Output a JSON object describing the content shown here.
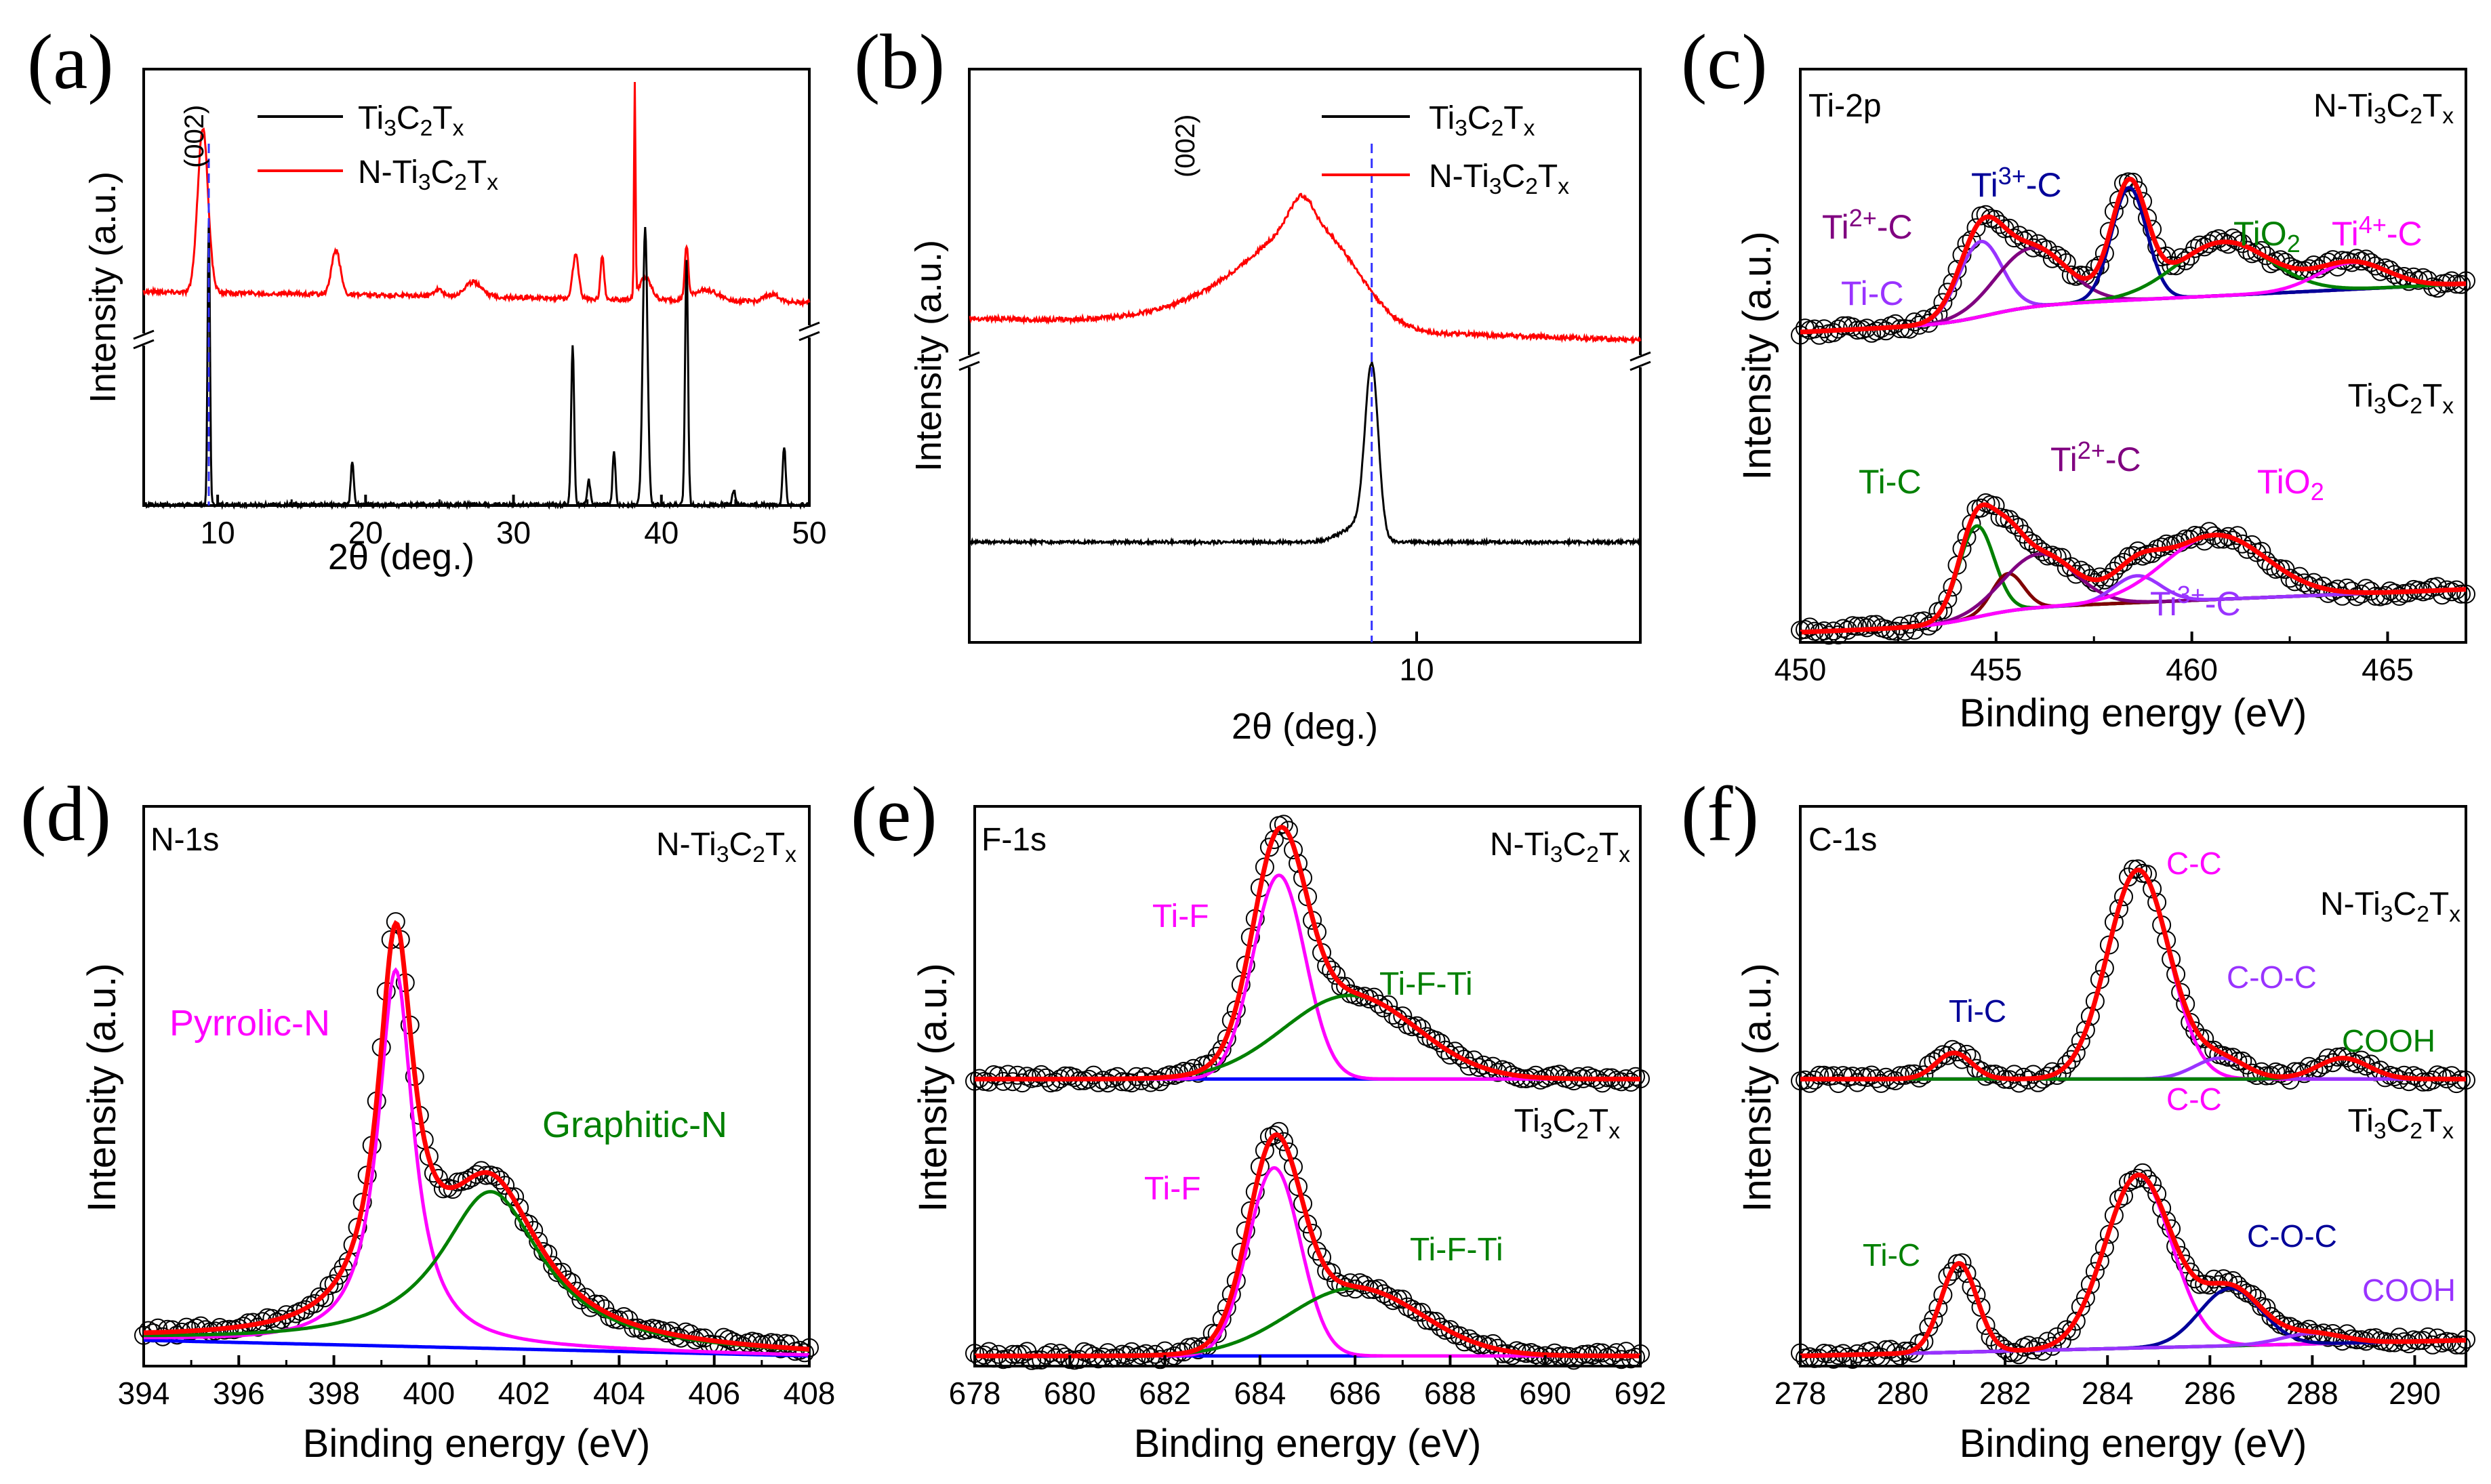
{
  "figure": {
    "colors": {
      "black": "#000000",
      "red": "#ff0000",
      "blue": "#0000ff",
      "navy": "#000099",
      "magenta": "#ff00ff",
      "green": "#008000",
      "purple": "#800080",
      "violet": "#9933ff",
      "darkred": "#800000",
      "dash": "#3333ff"
    }
  },
  "chart_data": [
    {
      "id": "a",
      "panel_label": "(a)",
      "type": "line",
      "xlabel": "2θ (deg.)",
      "ylabel": "Intensity (a.u.)",
      "xlim": [
        5,
        50
      ],
      "xticks": [
        10,
        20,
        30,
        40,
        50
      ],
      "y_axis_break": true,
      "legend": [
        {
          "name": "Ti3C2Tx",
          "main": "Ti",
          "parts": [
            [
              "3",
              "C"
            ],
            [
              "2",
              "T"
            ],
            [
              "x",
              ""
            ]
          ],
          "color": "#000000"
        },
        {
          "name": "N-Ti3C2Tx",
          "main": "N-Ti",
          "parts": [
            [
              "3",
              "C"
            ],
            [
              "2",
              "T"
            ],
            [
              "x",
              ""
            ]
          ],
          "color": "#ff0000"
        }
      ],
      "annotations": [
        "(002)"
      ],
      "reference_line_x": 9.4,
      "series": [
        {
          "name": "N-Ti3C2Tx",
          "color": "#ff0000",
          "baseline": 0.4,
          "slope": -0.03,
          "noise": 0.006,
          "peaks": [
            [
              9.0,
              0.45,
              0.35
            ],
            [
              18.0,
              0.12,
              0.3
            ],
            [
              27.3,
              0.04,
              0.6
            ],
            [
              34.2,
              0.12,
              0.2
            ],
            [
              36.0,
              0.12,
              0.12
            ],
            [
              38.2,
              0.58,
              0.05
            ],
            [
              38.9,
              0.06,
              0.4
            ],
            [
              41.7,
              0.14,
              0.12
            ],
            [
              43.0,
              0.03,
              0.8
            ],
            [
              24.9,
              0.02,
              0.3
            ],
            [
              47.5,
              0.02,
              0.5
            ]
          ]
        },
        {
          "name": "Ti3C2Tx",
          "color": "#000000",
          "baseline": 0.0,
          "slope": 0.0,
          "noise": 0.004,
          "peaks": [
            [
              9.4,
              0.58,
              0.08
            ],
            [
              19.1,
              0.09,
              0.1
            ],
            [
              34.0,
              0.33,
              0.1
            ],
            [
              35.1,
              0.05,
              0.1
            ],
            [
              36.8,
              0.11,
              0.1
            ],
            [
              38.9,
              0.57,
              0.16
            ],
            [
              41.7,
              0.5,
              0.1
            ],
            [
              44.9,
              0.03,
              0.1
            ],
            [
              48.3,
              0.12,
              0.1
            ]
          ]
        }
      ]
    },
    {
      "id": "b",
      "panel_label": "(b)",
      "type": "line",
      "xlabel": "2θ (deg.)",
      "ylabel": "Intensity (a.u.)",
      "xlim": [
        2.5,
        20
      ],
      "xscale": "log",
      "xticks": [
        10
      ],
      "y_axis_break": true,
      "legend": [
        {
          "name": "Ti3C2Tx",
          "main": "Ti",
          "parts": [
            [
              "3",
              "C"
            ],
            [
              "2",
              "T"
            ],
            [
              "x",
              ""
            ]
          ],
          "color": "#000000"
        },
        {
          "name": "N-Ti3C2Tx",
          "main": "N-Ti",
          "parts": [
            [
              "3",
              "C"
            ],
            [
              "2",
              "T"
            ],
            [
              "x",
              ""
            ]
          ],
          "color": "#ff0000"
        }
      ],
      "annotations": [
        "(002)"
      ],
      "reference_line_x": 8.7,
      "series": [
        {
          "name": "N-Ti3C2Tx",
          "color": "#ff0000",
          "baseline": 0.52,
          "slope": -0.06,
          "noise": 0.006,
          "peaks": [
            [
              7.2,
              0.28,
              1.1
            ],
            [
              7.0,
              0.08,
              0.25
            ],
            [
              5.5,
              0.05,
              1.0
            ]
          ]
        },
        {
          "name": "Ti3C2Tx",
          "color": "#000000",
          "baseline": 0.0,
          "slope": 0.0,
          "noise": 0.003,
          "peaks": [
            [
              8.7,
              0.33,
              0.18
            ],
            [
              8.3,
              0.03,
              0.4
            ]
          ]
        }
      ]
    },
    {
      "id": "c",
      "panel_label": "(c)",
      "type": "line",
      "xlabel": "Binding energy (eV)",
      "ylabel": "Intensity (a.u.)",
      "xlim": [
        450,
        467
      ],
      "xticks": [
        450,
        455,
        460,
        465
      ],
      "top_title": "Ti-2p",
      "sample_labels": [
        {
          "main": "N-Ti",
          "parts": [
            [
              "3",
              "C"
            ],
            [
              "2",
              "T"
            ],
            [
              "x",
              ""
            ]
          ]
        },
        {
          "main": "Ti",
          "parts": [
            [
              "3",
              "C"
            ],
            [
              "2",
              "T"
            ],
            [
              "x",
              ""
            ]
          ]
        }
      ],
      "component_labels": [
        {
          "text": "Ti",
          "sup": "2+",
          "tail": "-C",
          "color": "#800080"
        },
        {
          "text": "Ti",
          "sup": "3+",
          "tail": "-C",
          "color": "#000099"
        },
        {
          "text": "TiO",
          "sub": "2",
          "tail": "",
          "color": "#008000"
        },
        {
          "text": "Ti",
          "sup": "4+",
          "tail": "-C",
          "color": "#ff00ff"
        },
        {
          "text": "Ti-C",
          "color": "#9933ff"
        },
        {
          "text": "Ti-C",
          "color": "#008000"
        },
        {
          "text": "Ti",
          "sup": "2+",
          "tail": "-C",
          "color": "#800080"
        },
        {
          "text": "TiO",
          "sub": "2",
          "tail": "",
          "color": "#ff00ff"
        },
        {
          "text": "Ti",
          "sup": "3+",
          "tail": "-C",
          "color": "#9933ff"
        }
      ],
      "spectra": [
        {
          "name": "N-Ti3C2Tx",
          "offset": 0.56,
          "background": {
            "start": 0.0,
            "end": 0.06,
            "step_center": 454.8,
            "step_width": 0.6,
            "step_height": 0.03
          },
          "components": [
            {
              "name": "Ti-C",
              "center": 454.6,
              "height": 0.14,
              "width": 0.55,
              "color": "#9933ff"
            },
            {
              "name": "Ti2+-C",
              "center": 455.9,
              "height": 0.11,
              "width": 0.9,
              "color": "#800080"
            },
            {
              "name": "Ti3+-C",
              "center": 458.4,
              "height": 0.21,
              "width": 0.45,
              "color": "#000099"
            },
            {
              "name": "TiO2",
              "center": 460.8,
              "height": 0.1,
              "width": 1.2,
              "color": "#008000"
            },
            {
              "name": "Ti4+-C",
              "center": 464.1,
              "height": 0.05,
              "width": 0.9,
              "color": "#ff00ff"
            }
          ],
          "envelope_color": "#ff0000",
          "background_color": "#800080"
        },
        {
          "name": "Ti3C2Tx",
          "offset": 0.0,
          "background": {
            "start": 0.0,
            "end": 0.05,
            "step_center": 454.5,
            "step_width": 0.6,
            "step_height": 0.03
          },
          "components": [
            {
              "name": "Ti-C",
              "center": 454.5,
              "height": 0.17,
              "width": 0.45,
              "color": "#008000"
            },
            {
              "name": "Ti-C(2)",
              "center": 455.3,
              "height": 0.07,
              "width": 0.4,
              "color": "#800000"
            },
            {
              "name": "Ti2+-C",
              "center": 456.1,
              "height": 0.1,
              "width": 0.9,
              "color": "#800080"
            },
            {
              "name": "Ti3+-C",
              "center": 458.6,
              "height": 0.05,
              "width": 0.6,
              "color": "#9933ff"
            },
            {
              "name": "TiO2",
              "center": 460.6,
              "height": 0.12,
              "width": 1.3,
              "color": "#ff00ff"
            }
          ],
          "envelope_color": "#ff0000",
          "background_color": "#800000"
        }
      ]
    },
    {
      "id": "d",
      "panel_label": "(d)",
      "type": "line",
      "xlabel": "Binding energy (eV)",
      "ylabel": "Intensity (a.u.)",
      "xlim": [
        394,
        408
      ],
      "xticks": [
        394,
        396,
        398,
        400,
        402,
        404,
        406,
        408
      ],
      "top_title": "N-1s",
      "sample_labels": [
        {
          "main": "N-Ti",
          "parts": [
            [
              "3",
              "C"
            ],
            [
              "2",
              "T"
            ],
            [
              "x",
              ""
            ]
          ]
        }
      ],
      "component_labels": [
        {
          "text": "Pyrrolic-N",
          "color": "#ff00ff"
        },
        {
          "text": "Graphitic-N",
          "color": "#008000"
        }
      ],
      "spectra": [
        {
          "name": "N-Ti3C2Tx",
          "offset": 0.0,
          "background": {
            "start": 0.03,
            "end": 0.0,
            "step_center": 399,
            "step_width": 1,
            "step_height": 0.0
          },
          "components": [
            {
              "name": "Pyrrolic-N",
              "center": 399.3,
              "height": 0.72,
              "width": 0.45,
              "color": "#ff00ff",
              "lorentz": true
            },
            {
              "name": "Graphitic-N",
              "center": 401.3,
              "height": 0.3,
              "width": 1.3,
              "color": "#008000",
              "lorentz": true
            }
          ],
          "envelope_color": "#ff0000",
          "background_color": "#0000ff"
        }
      ]
    },
    {
      "id": "e",
      "panel_label": "(e)",
      "type": "line",
      "xlabel": "Binding energy (eV)",
      "ylabel": "Intensity (a.u.)",
      "xlim": [
        678,
        692
      ],
      "xticks": [
        678,
        680,
        682,
        684,
        686,
        688,
        690,
        692
      ],
      "top_title": "F-1s",
      "sample_labels": [
        {
          "main": "N-Ti",
          "parts": [
            [
              "3",
              "C"
            ],
            [
              "2",
              "T"
            ],
            [
              "x",
              ""
            ]
          ]
        },
        {
          "main": "Ti",
          "parts": [
            [
              "3",
              "C"
            ],
            [
              "2",
              "T"
            ],
            [
              "x",
              ""
            ]
          ]
        }
      ],
      "component_labels": [
        {
          "text": "Ti-F",
          "color": "#ff00ff"
        },
        {
          "text": "Ti-F-Ti",
          "color": "#008000"
        },
        {
          "text": "Ti-F",
          "color": "#ff00ff"
        },
        {
          "text": "Ti-F-Ti",
          "color": "#008000"
        }
      ],
      "spectra": [
        {
          "name": "N-Ti3C2Tx",
          "offset": 0.53,
          "background": {
            "start": 0.0,
            "end": 0.0,
            "step_center": 684,
            "step_width": 1,
            "step_height": 0.0
          },
          "components": [
            {
              "name": "Ti-F",
              "center": 684.4,
              "height": 0.39,
              "width": 0.55,
              "color": "#ff00ff"
            },
            {
              "name": "Ti-F-Ti",
              "center": 685.9,
              "height": 0.16,
              "width": 1.4,
              "color": "#008000"
            }
          ],
          "envelope_color": "#ff0000",
          "background_color": "#0000ff"
        },
        {
          "name": "Ti3C2Tx",
          "offset": 0.0,
          "background": {
            "start": 0.0,
            "end": 0.0,
            "step_center": 684,
            "step_width": 1,
            "step_height": 0.0
          },
          "components": [
            {
              "name": "Ti-F",
              "center": 684.3,
              "height": 0.36,
              "width": 0.55,
              "color": "#ff00ff"
            },
            {
              "name": "Ti-F-Ti",
              "center": 686.0,
              "height": 0.13,
              "width": 1.4,
              "color": "#008000"
            }
          ],
          "envelope_color": "#ff0000",
          "background_color": "#0000ff"
        }
      ]
    },
    {
      "id": "f",
      "panel_label": "(f)",
      "type": "line",
      "xlabel": "Binding energy (eV)",
      "ylabel": "Intensity (a.u.)",
      "xlim": [
        278,
        291
      ],
      "xticks": [
        278,
        280,
        282,
        284,
        286,
        288,
        290
      ],
      "top_title": "C-1s",
      "sample_labels": [
        {
          "main": "N-Ti",
          "parts": [
            [
              "3",
              "C"
            ],
            [
              "2",
              "T"
            ],
            [
              "x",
              ""
            ]
          ]
        },
        {
          "main": "Ti",
          "parts": [
            [
              "3",
              "C"
            ],
            [
              "2",
              "T"
            ],
            [
              "x",
              ""
            ]
          ]
        }
      ],
      "component_labels": [
        {
          "text": "C-C",
          "color": "#ff00ff"
        },
        {
          "text": "Ti-C",
          "color": "#000099"
        },
        {
          "text": "C-O-C",
          "color": "#9933ff"
        },
        {
          "text": "COOH",
          "color": "#008000"
        },
        {
          "text": "C-C",
          "color": "#ff00ff"
        },
        {
          "text": "Ti-C",
          "color": "#008000"
        },
        {
          "text": "C-O-C",
          "color": "#000099"
        },
        {
          "text": "COOH",
          "color": "#9933ff"
        }
      ],
      "spectra": [
        {
          "name": "N-Ti3C2Tx",
          "offset": 0.53,
          "background": {
            "start": 0.0,
            "end": 0.0,
            "step_center": 284,
            "step_width": 1,
            "step_height": 0.0
          },
          "components": [
            {
              "name": "Ti-C",
              "center": 281.0,
              "height": 0.05,
              "width": 0.35,
              "color": "#000099"
            },
            {
              "name": "C-C",
              "center": 284.6,
              "height": 0.4,
              "width": 0.6,
              "color": "#ff00ff"
            },
            {
              "name": "C-O-C",
              "center": 286.2,
              "height": 0.04,
              "width": 0.5,
              "color": "#9933ff"
            },
            {
              "name": "COOH",
              "center": 288.6,
              "height": 0.04,
              "width": 0.5,
              "color": "#008000"
            }
          ],
          "envelope_color": "#ff0000",
          "background_color": "#9933ff"
        },
        {
          "name": "Ti3C2Tx",
          "offset": 0.0,
          "background": {
            "start": 0.0,
            "end": 0.03,
            "step_center": 284,
            "step_width": 2,
            "step_height": 0.0
          },
          "components": [
            {
              "name": "Ti-C",
              "center": 281.1,
              "height": 0.17,
              "width": 0.35,
              "color": "#008000"
            },
            {
              "name": "C-C",
              "center": 284.6,
              "height": 0.33,
              "width": 0.65,
              "color": "#ff00ff"
            },
            {
              "name": "C-O-C",
              "center": 286.4,
              "height": 0.11,
              "width": 0.6,
              "color": "#000099"
            },
            {
              "name": "COOH",
              "center": 288.0,
              "height": 0.02,
              "width": 0.6,
              "color": "#9933ff"
            }
          ],
          "envelope_color": "#ff0000",
          "background_color": "#9933ff"
        }
      ]
    }
  ]
}
